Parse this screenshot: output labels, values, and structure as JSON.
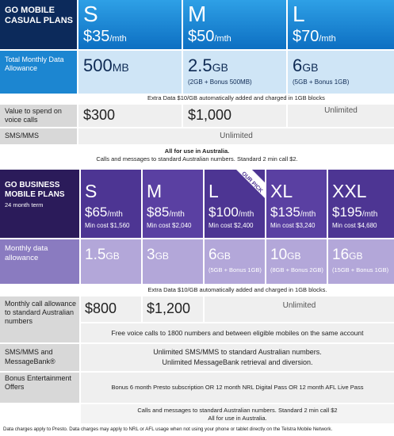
{
  "casual": {
    "title": "GO MOBILE CASUAL PLANS",
    "data_label": "Total Monthly Data Allowance",
    "extra_data": "Extra Data $10/GB automatically added and charged in 1GB blocks",
    "voice_label": "Value to spend on voice calls",
    "sms_label": "SMS/MMS",
    "sms_value": "Unlimited",
    "footnote_1": "All for use in Australia.",
    "footnote_2": "Calls and messages to standard Australian numbers. Standard 2 min call $2.",
    "plans": [
      {
        "size": "S",
        "price": "$35",
        "period": "/mth",
        "data": "500",
        "data_unit": "MB",
        "voice": "$300"
      },
      {
        "size": "M",
        "price": "$50",
        "period": "/mth",
        "data": "2.5",
        "data_unit": "GB",
        "data_note": "(2GB + Bonus 500MB)",
        "voice": "$1,000"
      },
      {
        "size": "L",
        "price": "$70",
        "period": "/mth",
        "data": "6",
        "data_unit": "GB",
        "data_note": "(5GB + Bonus 1GB)",
        "voice": "Unlimited"
      }
    ]
  },
  "business": {
    "title": "GO BUSINESS MOBILE PLANS",
    "term": "24 month term",
    "badge": "OUR PICK",
    "data_label": "Monthly data allowance",
    "extra_data": "Extra Data $10/GB automatically added and charged in 1GB blocks.",
    "calls_label": "Monthly call allowance to standard Australian numbers",
    "calls_unlimited": "Unlimited",
    "free_calls": "Free voice calls to 1800 numbers and between eligible mobiles on the same account",
    "sms_label": "SMS/MMS and MessageBank®",
    "sms_line_1": "Unlimited SMS/MMS to standard Australian numbers.",
    "sms_line_2": "Unlimited MessageBank retrieval and diversion.",
    "bonus_label": "Bonus Entertainment Offers",
    "bonus_value": "Bonus 6 month Presto subscription OR 12 month NRL Digital Pass OR 12 month AFL Live Pass",
    "footnote_1": "Calls and messages to standard Australian numbers. Standard 2 min call $2",
    "footnote_2": "All for use in Australia.",
    "plans": [
      {
        "size": "S",
        "price": "$65",
        "period": "/mth",
        "min_cost": "Min cost $1,560",
        "data": "1.5",
        "data_unit": "GB",
        "calls": "$800"
      },
      {
        "size": "M",
        "price": "$85",
        "period": "/mth",
        "min_cost": "Min cost $2,040",
        "data": "3",
        "data_unit": "GB",
        "calls": "$1,200"
      },
      {
        "size": "L",
        "price": "$100",
        "period": "/mth",
        "min_cost": "Min cost $2,400",
        "data": "6",
        "data_unit": "GB",
        "data_note": "(5GB + Bonus 1GB)"
      },
      {
        "size": "XL",
        "price": "$135",
        "period": "/mth",
        "min_cost": "Min cost $3,240",
        "data": "10",
        "data_unit": "GB",
        "data_note": "(8GB + Bonus 2GB)"
      },
      {
        "size": "XXL",
        "price": "$195",
        "period": "/mth",
        "min_cost": "Min cost $4,680",
        "data": "16",
        "data_unit": "GB",
        "data_note": "(15GB + Bonus 1GB)"
      }
    ]
  },
  "disclaimer": "Data charges apply to Presto. Data charges may apply to NRL or AFL usage when not using your phone or tablet directly on the Telstra Mobile Network."
}
